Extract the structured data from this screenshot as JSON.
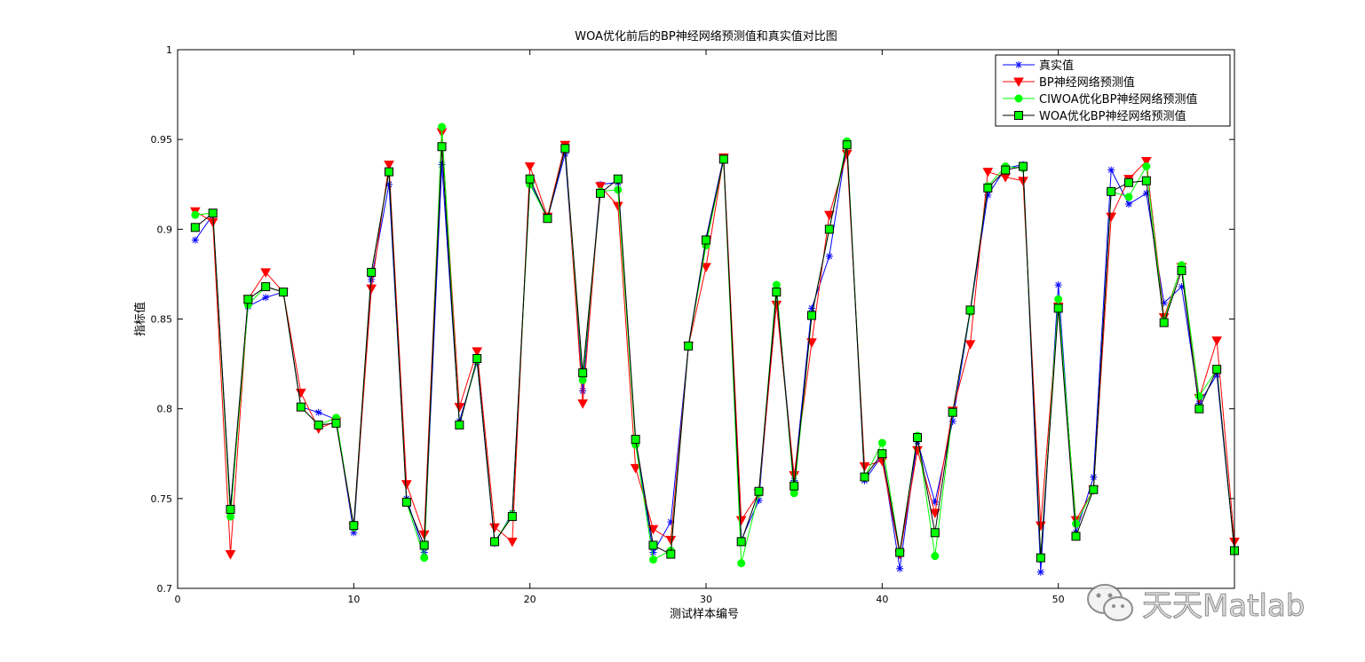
{
  "chart_data": {
    "type": "line",
    "title": "WOA优化前后的BP神经网络预测值和真实值对比图",
    "xlabel": "测试样本编号",
    "ylabel": "指标值",
    "xlim": [
      0,
      60
    ],
    "ylim": [
      0.7,
      1.0
    ],
    "xticks": [
      "0",
      "10",
      "20",
      "30",
      "40",
      "50"
    ],
    "yticks": [
      "0.7",
      "0.75",
      "0.8",
      "0.85",
      "0.9",
      "0.95",
      "1"
    ],
    "grid": false,
    "legend_position": "top-right",
    "x": [
      1,
      2,
      3,
      4,
      5,
      6,
      7,
      8,
      9,
      10,
      11,
      12,
      13,
      14,
      15,
      16,
      17,
      18,
      19,
      20,
      21,
      22,
      23,
      24,
      25,
      26,
      27,
      28,
      29,
      30,
      31,
      32,
      33,
      34,
      35,
      36,
      37,
      38,
      39,
      40,
      41,
      42,
      43,
      44,
      45,
      46,
      47,
      48,
      49,
      50,
      51,
      52,
      53,
      54,
      55,
      56,
      57,
      58,
      59,
      60
    ],
    "series": [
      {
        "name": "真实值",
        "color": "#0000ff",
        "marker": "star",
        "values": [
          0.894,
          0.908,
          0.745,
          0.857,
          0.862,
          0.865,
          0.801,
          0.798,
          0.794,
          0.731,
          0.872,
          0.925,
          0.75,
          0.72,
          0.936,
          0.793,
          0.826,
          0.725,
          0.742,
          0.926,
          0.906,
          0.942,
          0.81,
          0.925,
          0.926,
          0.782,
          0.72,
          0.737,
          0.835,
          0.895,
          0.94,
          0.727,
          0.749,
          0.865,
          0.76,
          0.856,
          0.885,
          0.948,
          0.76,
          0.774,
          0.711,
          0.782,
          0.748,
          0.793,
          0.854,
          0.919,
          0.934,
          0.936,
          0.709,
          0.869,
          0.731,
          0.762,
          0.933,
          0.914,
          0.92,
          0.859,
          0.868,
          0.803,
          0.819,
          0.721
        ]
      },
      {
        "name": "BP神经网络预测值",
        "color": "#ff0000",
        "marker": "triangle-down",
        "values": [
          0.91,
          0.904,
          0.719,
          0.861,
          0.876,
          0.865,
          0.809,
          0.789,
          0.793,
          0.734,
          0.867,
          0.936,
          0.758,
          0.73,
          0.954,
          0.801,
          0.832,
          0.734,
          0.726,
          0.935,
          0.907,
          0.947,
          0.803,
          0.924,
          0.913,
          0.767,
          0.733,
          0.727,
          0.835,
          0.879,
          0.94,
          0.738,
          0.753,
          0.858,
          0.763,
          0.837,
          0.908,
          0.942,
          0.768,
          0.771,
          0.719,
          0.777,
          0.742,
          0.799,
          0.836,
          0.932,
          0.929,
          0.927,
          0.735,
          0.857,
          0.738,
          0.755,
          0.907,
          0.928,
          0.938,
          0.851,
          0.879,
          0.806,
          0.838,
          0.726
        ]
      },
      {
        "name": "CIWOA优化BP神经网络预测值",
        "color": "#00ff00",
        "marker": "circle",
        "values": [
          0.908,
          0.909,
          0.74,
          0.858,
          0.868,
          0.865,
          0.801,
          0.791,
          0.795,
          0.734,
          0.876,
          0.932,
          0.748,
          0.717,
          0.957,
          0.791,
          0.827,
          0.726,
          0.741,
          0.925,
          0.906,
          0.945,
          0.816,
          0.921,
          0.922,
          0.78,
          0.716,
          0.721,
          0.835,
          0.891,
          0.939,
          0.714,
          0.753,
          0.869,
          0.753,
          0.852,
          0.9,
          0.949,
          0.762,
          0.781,
          0.72,
          0.785,
          0.718,
          0.798,
          0.854,
          0.924,
          0.935,
          0.934,
          0.717,
          0.861,
          0.736,
          0.755,
          0.921,
          0.918,
          0.935,
          0.849,
          0.88,
          0.807,
          0.822,
          0.721
        ]
      },
      {
        "name": "WOA优化BP神经网络预测值",
        "color": "#000000",
        "fill": "#00ff00",
        "marker": "square",
        "values": [
          0.901,
          0.909,
          0.744,
          0.861,
          0.868,
          0.865,
          0.801,
          0.791,
          0.792,
          0.735,
          0.876,
          0.932,
          0.748,
          0.724,
          0.946,
          0.791,
          0.828,
          0.726,
          0.74,
          0.928,
          0.906,
          0.945,
          0.82,
          0.92,
          0.928,
          0.783,
          0.724,
          0.719,
          0.835,
          0.894,
          0.939,
          0.726,
          0.754,
          0.865,
          0.757,
          0.852,
          0.9,
          0.947,
          0.762,
          0.775,
          0.72,
          0.784,
          0.731,
          0.798,
          0.855,
          0.923,
          0.933,
          0.935,
          0.717,
          0.856,
          0.729,
          0.755,
          0.921,
          0.926,
          0.927,
          0.848,
          0.877,
          0.8,
          0.822,
          0.721
        ]
      }
    ]
  },
  "watermark": {
    "text": "天天Matlab",
    "icon": "wechat-icon"
  }
}
